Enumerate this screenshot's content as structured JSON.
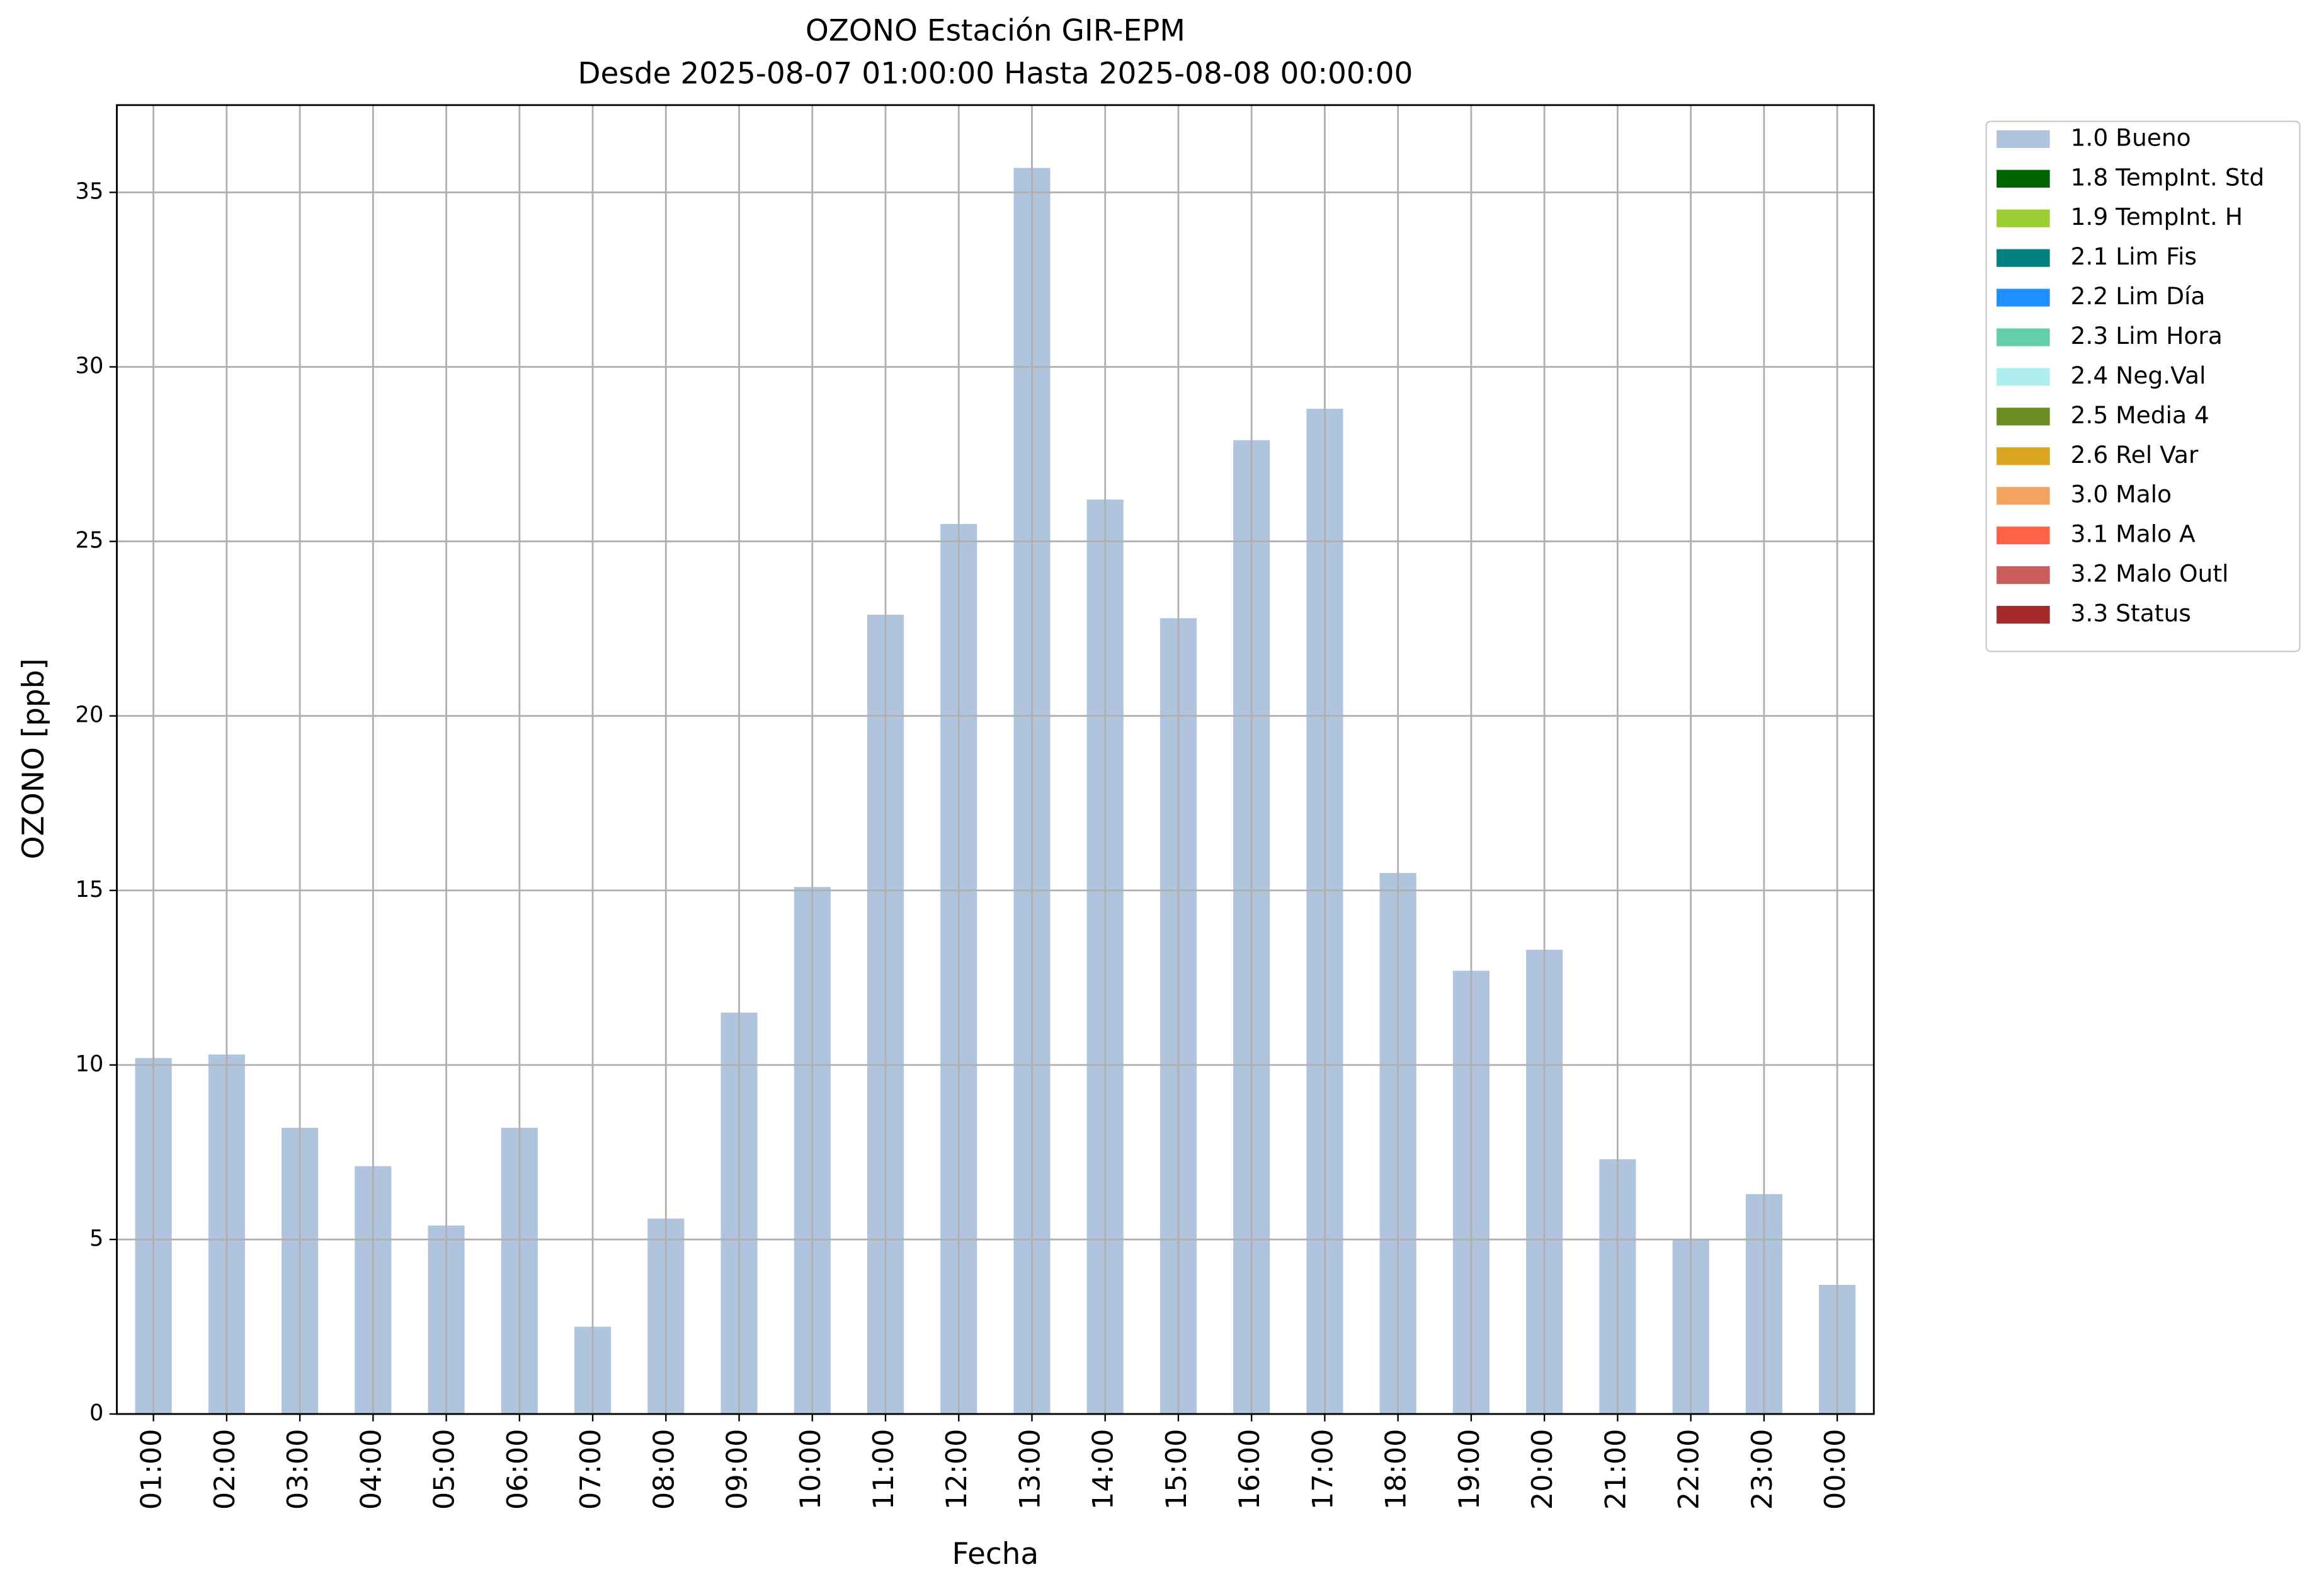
{
  "chart_data": {
    "type": "bar",
    "title": "OZONO Estación GIR-EPM",
    "subtitle": "Desde 2025-08-07 01:00:00 Hasta 2025-08-08 00:00:00",
    "x_label": "Fecha",
    "y_label": "OZONO [ppb]",
    "categories": [
      "01:00",
      "02:00",
      "03:00",
      "04:00",
      "05:00",
      "06:00",
      "07:00",
      "08:00",
      "09:00",
      "10:00",
      "11:00",
      "12:00",
      "13:00",
      "14:00",
      "15:00",
      "16:00",
      "17:00",
      "18:00",
      "19:00",
      "20:00",
      "21:00",
      "22:00",
      "23:00",
      "00:00"
    ],
    "series": [
      {
        "name": "1.0 Bueno",
        "color": "#b0c4de",
        "values": [
          10.2,
          10.3,
          8.2,
          7.1,
          5.4,
          8.2,
          2.5,
          5.6,
          11.5,
          15.1,
          22.9,
          25.5,
          35.7,
          26.2,
          22.8,
          27.9,
          28.8,
          15.5,
          12.7,
          13.3,
          7.3,
          5.0,
          6.3,
          3.7
        ]
      }
    ],
    "other_legend_entries": [
      {
        "name": "1.8 TempInt. Std",
        "color": "#006400"
      },
      {
        "name": "1.9 TempInt. H",
        "color": "#9acd32"
      },
      {
        "name": "2.1 Lim Fis",
        "color": "#008080"
      },
      {
        "name": "2.2 Lim Día",
        "color": "#1e90ff"
      },
      {
        "name": "2.3 Lim Hora",
        "color": "#66cdaa"
      },
      {
        "name": "2.4 Neg.Val",
        "color": "#afeeee"
      },
      {
        "name": "2.5 Media 4",
        "color": "#6b8e23"
      },
      {
        "name": "2.6 Rel Var",
        "color": "#daa520"
      },
      {
        "name": "3.0 Malo",
        "color": "#f4a460"
      },
      {
        "name": "3.1 Malo A",
        "color": "#ff6347"
      },
      {
        "name": "3.2 Malo Outl",
        "color": "#cd5c5c"
      },
      {
        "name": "3.3 Status",
        "color": "#a52a2a"
      }
    ],
    "ylim": [
      0,
      37.5
    ],
    "yticks": [
      0,
      5,
      10,
      15,
      20,
      25,
      30,
      35
    ],
    "grid": true,
    "legend_loc": "outside upper right"
  }
}
